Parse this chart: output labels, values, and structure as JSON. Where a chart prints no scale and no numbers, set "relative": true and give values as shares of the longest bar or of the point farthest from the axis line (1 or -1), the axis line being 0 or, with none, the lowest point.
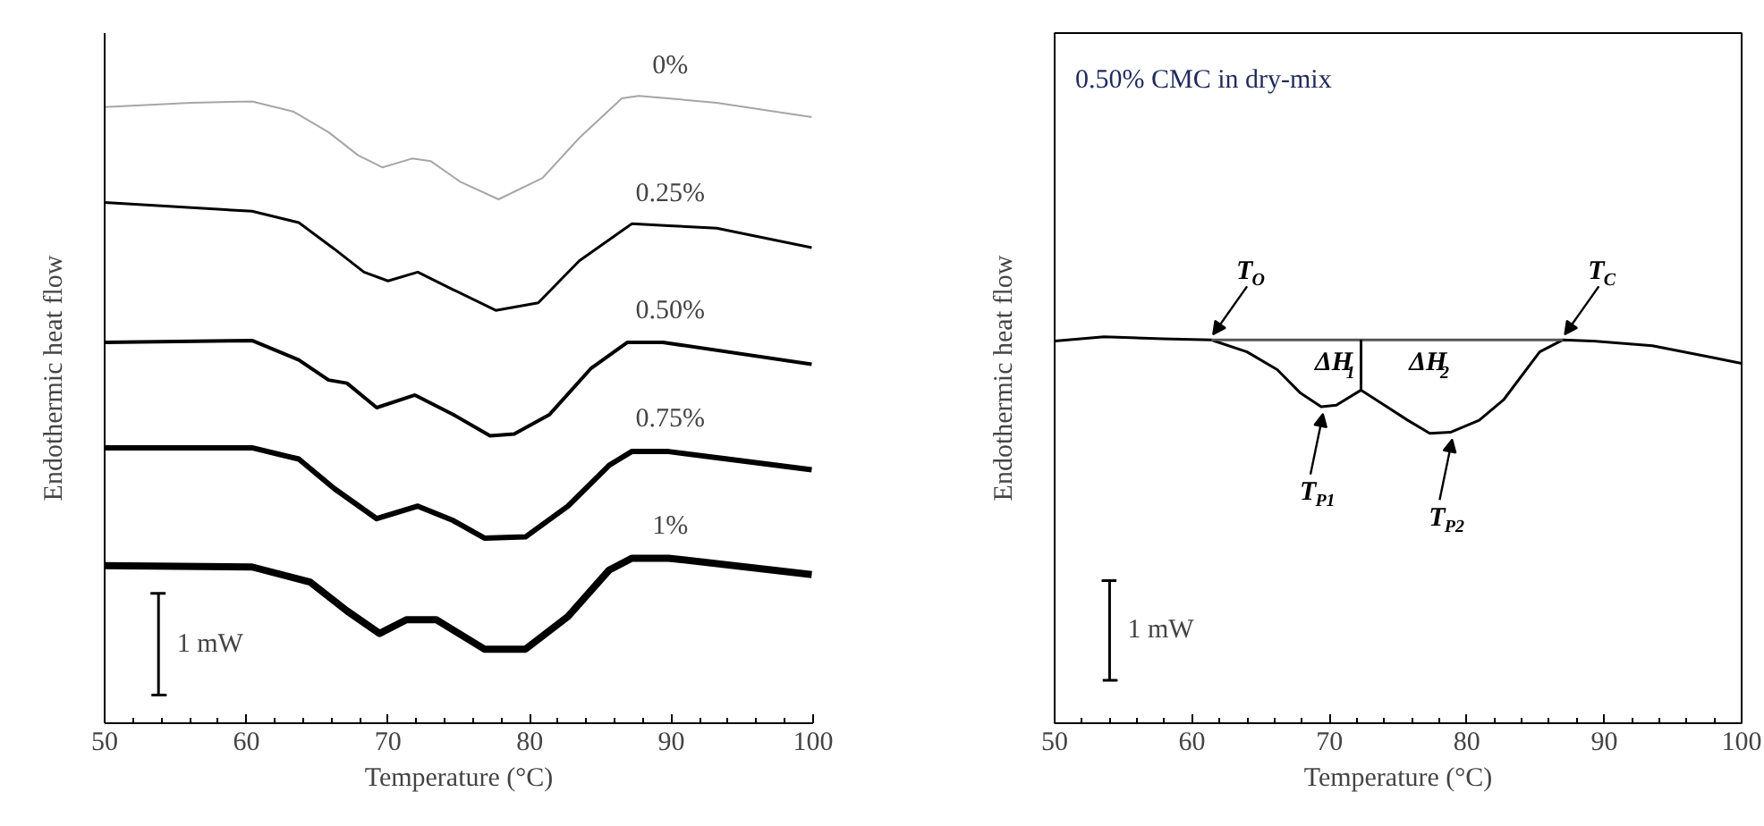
{
  "chart_data": [
    {
      "type": "line",
      "relative": true,
      "xlabel": "Temperature (°C)",
      "ylabel": "Endothermic heat flow",
      "xlim": [
        50,
        100
      ],
      "xticks": [
        50,
        60,
        70,
        80,
        90,
        100
      ],
      "tick_labels": "x",
      "annotations": [
        "1 mW"
      ],
      "series": [
        {
          "name": "0%",
          "color": "#a6a6a6",
          "x": [
            50,
            56.1,
            60.4,
            63.3,
            65.8,
            67.9,
            69.6,
            71.7,
            73.0,
            75.1,
            77.8,
            80.9,
            83.5,
            86.5,
            87.7,
            93.2,
            99.9
          ],
          "values": [
            0.982,
            0.989,
            0.991,
            0.975,
            0.942,
            0.905,
            0.886,
            0.9,
            0.896,
            0.863,
            0.835,
            0.869,
            0.933,
            0.996,
            1.0,
            0.989,
            0.966
          ]
        },
        {
          "name": "0.25%",
          "color": "#000000",
          "x": [
            50,
            60.4,
            63.7,
            66.2,
            68.3,
            70.0,
            72.1,
            74.6,
            77.6,
            80.6,
            83.5,
            87.2,
            89.8,
            93.2,
            99.9
          ],
          "values": [
            0.83,
            0.816,
            0.798,
            0.756,
            0.719,
            0.705,
            0.719,
            0.691,
            0.658,
            0.67,
            0.737,
            0.796,
            0.793,
            0.789,
            0.758
          ]
        },
        {
          "name": "0.50%",
          "color": "#000000",
          "x": [
            50,
            60.4,
            63.7,
            65.8,
            67.1,
            69.2,
            71.9,
            74.6,
            77.2,
            78.9,
            81.4,
            84.3,
            86.9,
            89.4,
            99.9
          ],
          "values": [
            0.607,
            0.61,
            0.579,
            0.547,
            0.542,
            0.503,
            0.523,
            0.492,
            0.458,
            0.461,
            0.492,
            0.565,
            0.607,
            0.607,
            0.572
          ]
        },
        {
          "name": "0.75%",
          "color": "#000000",
          "x": [
            50,
            60.4,
            63.7,
            66.2,
            69.2,
            72.1,
            74.6,
            76.8,
            79.7,
            82.7,
            85.6,
            87.2,
            89.8,
            99.9
          ],
          "values": [
            0.439,
            0.439,
            0.421,
            0.374,
            0.326,
            0.346,
            0.323,
            0.295,
            0.297,
            0.346,
            0.411,
            0.433,
            0.433,
            0.404
          ]
        },
        {
          "name": "1%",
          "color": "#000000",
          "x": [
            50,
            60.4,
            64.5,
            67.1,
            69.4,
            71.3,
            73.4,
            76.8,
            79.7,
            82.7,
            85.6,
            87.2,
            89.8,
            99.9
          ],
          "values": [
            0.251,
            0.249,
            0.225,
            0.179,
            0.143,
            0.165,
            0.165,
            0.118,
            0.118,
            0.17,
            0.244,
            0.263,
            0.263,
            0.237
          ]
        },
        {
          "color": "#000000",
          "x": [
            53.3,
            54.3,
            53.8,
            53.8,
            53.3,
            54.3
          ],
          "values": [
            0.045,
            0.045,
            0.045,
            0.207,
            0.207,
            0.207
          ]
        }
      ]
    },
    {
      "type": "line",
      "relative": true,
      "xlabel": "Temperature (°C)",
      "ylabel": "Endothermic heat flow",
      "xlim": [
        50,
        100
      ],
      "xticks": [
        50,
        60,
        70,
        80,
        90,
        100
      ],
      "tick_labels": "x",
      "annotations": [
        "0.50% CMC in dry-mix",
        "1 mW",
        {
          "text": "T$_{O}$",
          "x": 61.4,
          "y": 0.992
        },
        {
          "text": "T$_{C}$",
          "x": 87.0,
          "y": 0.992
        },
        "ΔH$_{1}$",
        "ΔH$_{2}$",
        {
          "text": "T$_{P1}$",
          "x": 69.4,
          "y": 0.819
        },
        {
          "text": "T$_{P2}$",
          "x": 78.8,
          "y": 0.753
        }
      ],
      "series": [
        {
          "color": "#000000",
          "x": [
            50,
            53.6,
            57.9,
            61.4,
            64.0,
            66.2,
            67.9,
            69.4,
            70.5,
            72.3,
            74.0,
            75.7,
            77.3,
            78.8,
            80.9,
            82.7,
            85.3,
            87.0,
            89.2,
            93.5,
            97.9,
            100
          ],
          "values": [
            0.989,
            1.0,
            0.995,
            0.992,
            0.961,
            0.915,
            0.854,
            0.819,
            0.823,
            0.862,
            0.823,
            0.784,
            0.75,
            0.753,
            0.784,
            0.838,
            0.961,
            0.992,
            0.989,
            0.977,
            0.946,
            0.931
          ]
        },
        {
          "color": "#555555",
          "x": [
            61.4,
            87.0
          ],
          "values": [
            0.992,
            0.992
          ]
        },
        {
          "color": "#000000",
          "x": [
            72.3,
            72.3
          ],
          "values": [
            0.992,
            0.862
          ]
        },
        {
          "color": "#000000",
          "x": [
            53.5,
            54.5,
            54.0,
            54.0,
            53.5,
            54.5
          ],
          "values": [
            0.111,
            0.111,
            0.111,
            0.369,
            0.369,
            0.369
          ]
        }
      ]
    }
  ]
}
